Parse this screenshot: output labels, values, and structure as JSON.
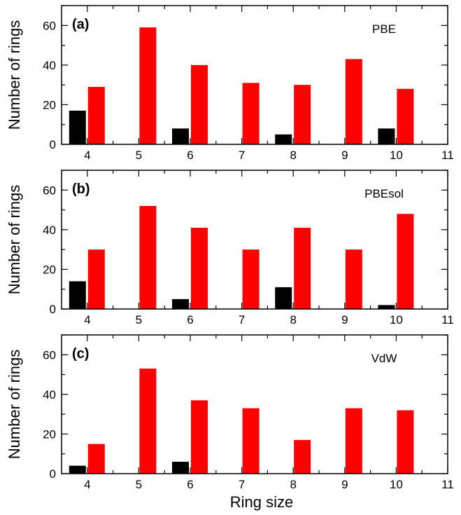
{
  "figure": {
    "xlabel": "Ring size"
  },
  "chart_data": [
    {
      "type": "bar",
      "panel_label": "(a)",
      "annotation": "PBE",
      "ylabel": "Number of rings",
      "xlabel": "",
      "x_range": [
        3.5,
        11
      ],
      "ylim": [
        0,
        70
      ],
      "x_ticks": [
        4,
        5,
        6,
        7,
        8,
        9,
        10,
        11
      ],
      "y_ticks": [
        0,
        20,
        40,
        60
      ],
      "colors": {
        "black": "#000000",
        "red": "#ff0000"
      },
      "black_bars": [
        {
          "x": 4,
          "value": 17
        },
        {
          "x": 6,
          "value": 8
        },
        {
          "x": 8,
          "value": 5
        },
        {
          "x": 10,
          "value": 8
        }
      ],
      "red_bars": [
        {
          "x": 4,
          "value": 29
        },
        {
          "x": 5,
          "value": 59
        },
        {
          "x": 6,
          "value": 40
        },
        {
          "x": 7,
          "value": 31
        },
        {
          "x": 8,
          "value": 30
        },
        {
          "x": 9,
          "value": 43
        },
        {
          "x": 10,
          "value": 28
        }
      ]
    },
    {
      "type": "bar",
      "panel_label": "(b)",
      "annotation": "PBEsol",
      "ylabel": "Number of rings",
      "xlabel": "",
      "x_range": [
        3.5,
        11
      ],
      "ylim": [
        0,
        70
      ],
      "x_ticks": [
        4,
        5,
        6,
        7,
        8,
        9,
        10,
        11
      ],
      "y_ticks": [
        0,
        20,
        40,
        60
      ],
      "colors": {
        "black": "#000000",
        "red": "#ff0000"
      },
      "black_bars": [
        {
          "x": 4,
          "value": 14
        },
        {
          "x": 6,
          "value": 5
        },
        {
          "x": 8,
          "value": 11
        },
        {
          "x": 10,
          "value": 2
        }
      ],
      "red_bars": [
        {
          "x": 4,
          "value": 30
        },
        {
          "x": 5,
          "value": 52
        },
        {
          "x": 6,
          "value": 41
        },
        {
          "x": 7,
          "value": 30
        },
        {
          "x": 8,
          "value": 41
        },
        {
          "x": 9,
          "value": 30
        },
        {
          "x": 10,
          "value": 48
        }
      ]
    },
    {
      "type": "bar",
      "panel_label": "(c)",
      "annotation": "VdW",
      "ylabel": "Number of rings",
      "xlabel": "Ring size",
      "x_range": [
        3.5,
        11
      ],
      "ylim": [
        0,
        70
      ],
      "x_ticks": [
        4,
        5,
        6,
        7,
        8,
        9,
        10,
        11
      ],
      "y_ticks": [
        0,
        20,
        40,
        60
      ],
      "colors": {
        "black": "#000000",
        "red": "#ff0000"
      },
      "black_bars": [
        {
          "x": 4,
          "value": 4
        },
        {
          "x": 6,
          "value": 6
        }
      ],
      "red_bars": [
        {
          "x": 4,
          "value": 15
        },
        {
          "x": 5,
          "value": 53
        },
        {
          "x": 6,
          "value": 37
        },
        {
          "x": 7,
          "value": 33
        },
        {
          "x": 8,
          "value": 17
        },
        {
          "x": 9,
          "value": 33
        },
        {
          "x": 10,
          "value": 32
        }
      ]
    }
  ]
}
